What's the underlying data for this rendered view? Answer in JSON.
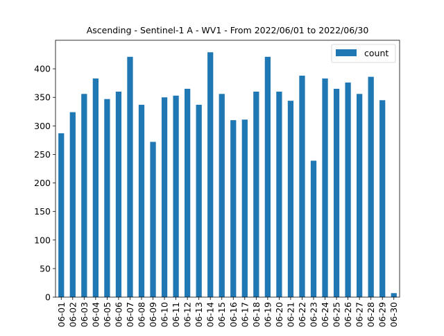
{
  "chart_data": {
    "type": "bar",
    "title": "Ascending - Sentinel-1 A - WV1 - From 2022/06/01 to 2022/06/30",
    "xlabel": "",
    "ylabel": "",
    "categories": [
      "06-01",
      "06-02",
      "06-03",
      "06-04",
      "06-05",
      "06-06",
      "06-07",
      "06-08",
      "06-09",
      "06-10",
      "06-11",
      "06-12",
      "06-13",
      "06-14",
      "06-15",
      "06-16",
      "06-17",
      "06-18",
      "06-19",
      "06-20",
      "06-21",
      "06-22",
      "06-23",
      "06-24",
      "06-25",
      "06-26",
      "06-27",
      "06-28",
      "06-29",
      "06-30"
    ],
    "series": [
      {
        "name": "count",
        "values": [
          287,
          324,
          356,
          383,
          347,
          360,
          421,
          337,
          272,
          350,
          353,
          365,
          337,
          429,
          356,
          310,
          311,
          360,
          421,
          360,
          344,
          388,
          239,
          383,
          365,
          376,
          356,
          386,
          345,
          7
        ],
        "color": "#1f77b4"
      }
    ],
    "ylim": [
      0,
      450
    ],
    "yticks": [
      0,
      50,
      100,
      150,
      200,
      250,
      300,
      350,
      400
    ],
    "grid": false,
    "legend": "top-right"
  }
}
